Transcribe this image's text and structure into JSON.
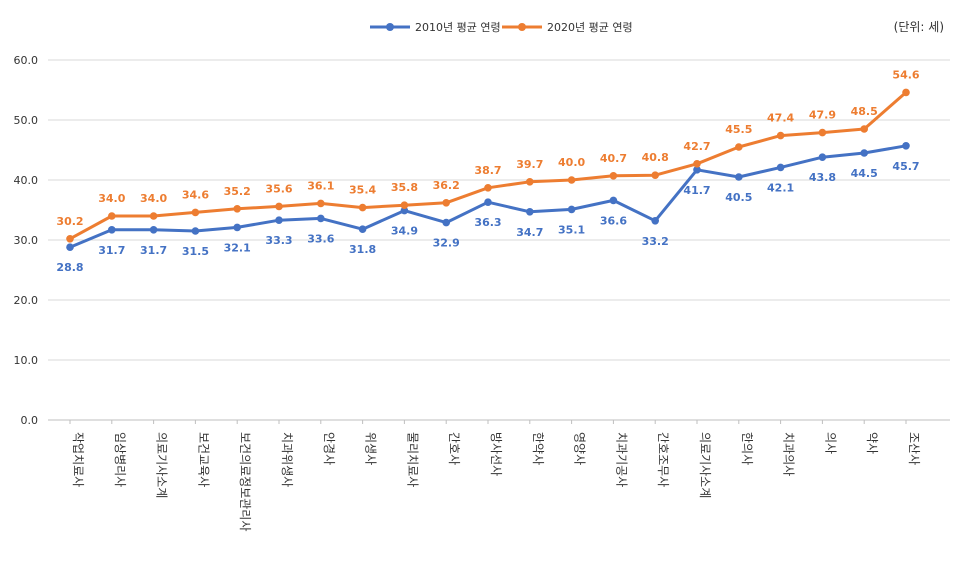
{
  "chart_data": {
    "type": "line",
    "unit_note": "(단위: 세)",
    "categories": [
      "작업치료사",
      "임상병리사",
      "의료기사소계",
      "보건교육사",
      "보건의료정보관리사",
      "치과위생사",
      "안경사",
      "위생사",
      "물리치료사",
      "간호사",
      "방사선사",
      "한약사",
      "영양사",
      "치과기공사",
      "간호조무사",
      "의료기사소계",
      "한의사",
      "치과의사",
      "의사",
      "약사",
      "조산사"
    ],
    "series": [
      {
        "name": "2010년 평균 연령",
        "color": "#4472C4",
        "values": [
          28.8,
          31.7,
          31.7,
          31.5,
          32.1,
          33.3,
          33.6,
          31.8,
          34.9,
          32.9,
          36.3,
          34.7,
          35.1,
          36.6,
          33.2,
          41.7,
          40.5,
          42.1,
          43.8,
          44.5,
          45.7
        ]
      },
      {
        "name": "2020년 평균 연령",
        "color": "#ED7D31",
        "values": [
          30.2,
          34.0,
          34.0,
          34.6,
          35.2,
          35.6,
          36.1,
          35.4,
          35.8,
          36.2,
          38.7,
          39.7,
          40.0,
          40.7,
          40.8,
          42.7,
          45.5,
          47.4,
          47.9,
          48.5,
          54.6
        ]
      }
    ],
    "ylim": [
      0,
      60
    ],
    "yticks": [
      "0.0",
      "10.0",
      "20.0",
      "30.0",
      "40.0",
      "50.0",
      "60.0"
    ],
    "grid": true,
    "legend_position": "top"
  }
}
